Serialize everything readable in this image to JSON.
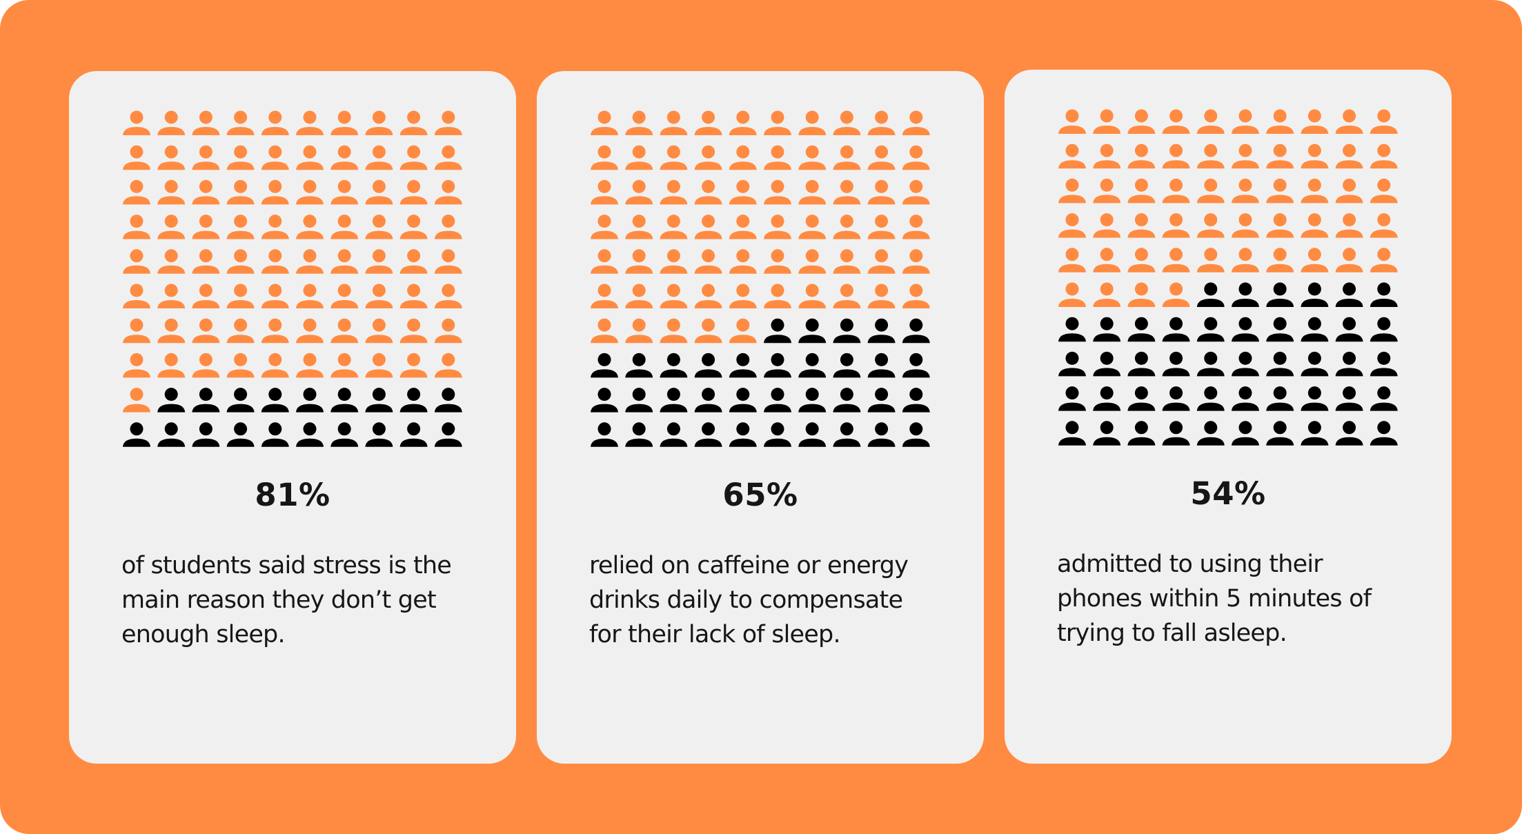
{
  "colors": {
    "background": "#FF8B42",
    "card": "#F1F0F0",
    "highlight_icon": "#FF8B42",
    "base_icon": "#000000",
    "text": "#161616"
  },
  "icon": "person-icon",
  "chart_data": [
    {
      "type": "pictogram",
      "rows": 10,
      "columns": 10,
      "total": 100,
      "highlighted": 81,
      "value_label": "81%",
      "description_lines": [
        "of students said stress is the",
        "main reason they don’t get",
        "enough sleep."
      ]
    },
    {
      "type": "pictogram",
      "rows": 10,
      "columns": 10,
      "total": 100,
      "highlighted": 65,
      "value_label": "65%",
      "description_lines": [
        "relied on caffeine or energy",
        "drinks daily to compensate",
        "for their lack of sleep."
      ]
    },
    {
      "type": "pictogram",
      "rows": 10,
      "columns": 10,
      "total": 100,
      "highlighted": 54,
      "value_label": "54%",
      "description_lines": [
        "admitted to using their",
        "phones within 5 minutes of",
        "trying to fall asleep."
      ]
    }
  ]
}
